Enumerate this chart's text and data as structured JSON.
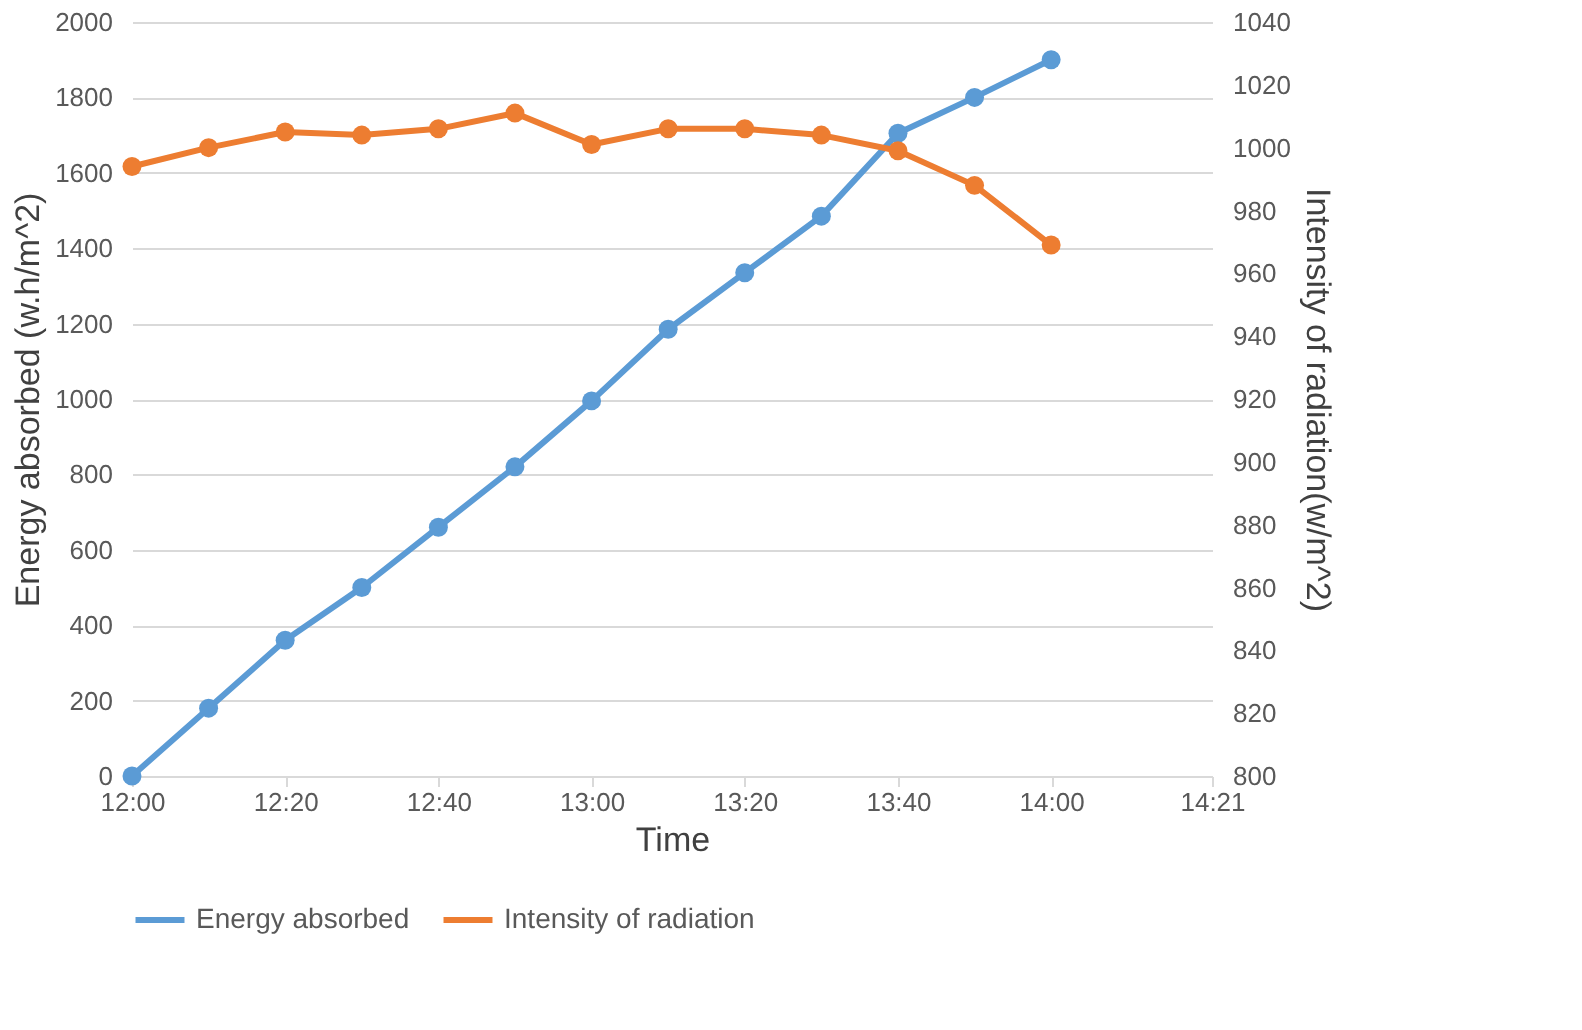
{
  "chart_data": {
    "type": "line",
    "xlabel": "Time",
    "ylabel": "Energy absorbed (w.h/m^2)",
    "y2label": "Intensity of radiation(w/m^2)",
    "x": [
      12,
      12.1667,
      12.3333,
      12.5,
      12.6667,
      12.8333,
      13,
      13.1667,
      13.3333,
      13.5,
      13.6667,
      13.8333,
      14
    ],
    "series": [
      {
        "name": "Energy absorbed",
        "color": "#5b9bd5",
        "values": [
          0,
          180,
          360,
          500,
          660,
          820,
          995,
          1185,
          1335,
          1485,
          1705,
          1800,
          1900
        ]
      },
      {
        "name": "Intensity of radiation",
        "color": "#ed7d31",
        "axis": "y2",
        "values": [
          994,
          1000,
          1005,
          1004,
          1006,
          1011,
          1001,
          1006,
          1006,
          1004,
          999,
          988,
          969
        ]
      }
    ],
    "xlim": [
      12,
      14.35
    ],
    "xticks": [
      {
        "value": 12,
        "label": "12:00"
      },
      {
        "value": 12.3333,
        "label": "12:20"
      },
      {
        "value": 12.6667,
        "label": "12:40"
      },
      {
        "value": 13,
        "label": "13:00"
      },
      {
        "value": 13.3333,
        "label": "13:20"
      },
      {
        "value": 13.6667,
        "label": "13:40"
      },
      {
        "value": 14,
        "label": "14:00"
      },
      {
        "value": 14.35,
        "label": "14:21"
      }
    ],
    "ylim": [
      0,
      2000
    ],
    "yticks": [
      0,
      200,
      400,
      600,
      800,
      1000,
      1200,
      1400,
      1600,
      1800,
      2000
    ],
    "y2lim": [
      800,
      1040
    ],
    "y2ticks": [
      800,
      820,
      840,
      860,
      880,
      900,
      920,
      940,
      960,
      980,
      1000,
      1020,
      1040
    ],
    "grid": "y",
    "legend": "bottom",
    "marker": "circle",
    "line_style": "solid"
  }
}
